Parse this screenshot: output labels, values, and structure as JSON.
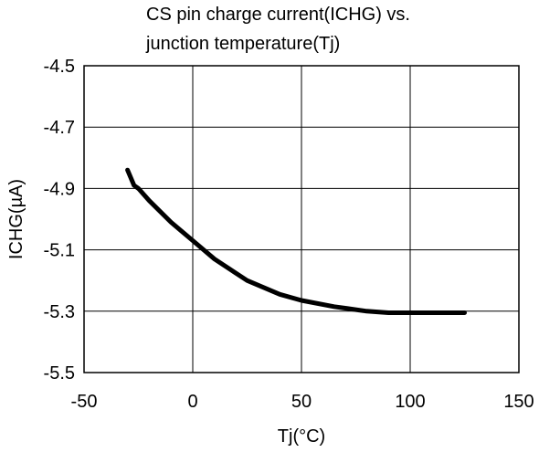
{
  "chart_data": {
    "type": "line",
    "title_line1": "CS pin charge current(ICHG) vs.",
    "title_line2": "junction temperature(Tj)",
    "xlabel": "Tj(°C)",
    "ylabel": "ICHG(µA)",
    "xlim": [
      -50,
      150
    ],
    "ylim": [
      -5.5,
      -4.5
    ],
    "x_ticks": [
      -50,
      0,
      50,
      100,
      150
    ],
    "x_tick_labels": [
      "-50",
      "0",
      "50",
      "100",
      "150"
    ],
    "y_ticks": [
      -4.5,
      -4.7,
      -4.9,
      -5.1,
      -5.3,
      -5.5
    ],
    "y_tick_labels": [
      "-4.5",
      "-4.7",
      "-4.9",
      "-5.1",
      "-5.3",
      "-5.5"
    ],
    "grid": true,
    "series": [
      {
        "x": [
          -30,
          -27,
          -25,
          -20,
          -10,
          0,
          10,
          25,
          40,
          50,
          65,
          80,
          90,
          100,
          110,
          125
        ],
        "y": [
          -4.84,
          -4.89,
          -4.9,
          -4.94,
          -5.01,
          -5.07,
          -5.13,
          -5.2,
          -5.245,
          -5.265,
          -5.285,
          -5.3,
          -5.305,
          -5.305,
          -5.305,
          -5.305
        ]
      }
    ],
    "line_color": "#000000"
  }
}
